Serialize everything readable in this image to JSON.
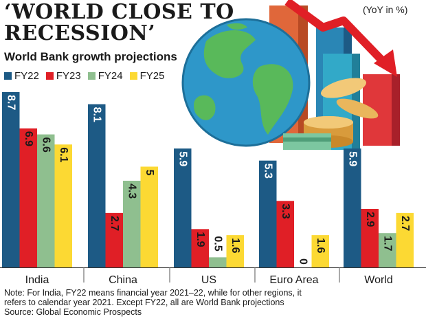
{
  "header": {
    "title_line1": "‘WORLD CLOSE TO",
    "title_line2": "RECESSION’",
    "subtitle": "World Bank growth projections",
    "unit": "(YoY in %)"
  },
  "note": {
    "line1": "Note: For India, FY22 means financial year 2021–22, while for other regions, it",
    "line2": "refers to calendar year 2021. Except FY22, all are World Bank projections",
    "line3": "Source: Global Economic Prospects"
  },
  "chart_data": {
    "type": "bar",
    "categories": [
      "India",
      "China",
      "US",
      "Euro Area",
      "World"
    ],
    "series": [
      {
        "name": "FY22",
        "color": "#1d5a85",
        "values": [
          8.7,
          8.1,
          5.9,
          5.3,
          5.9
        ]
      },
      {
        "name": "FY23",
        "color": "#e01f26",
        "values": [
          6.9,
          2.7,
          1.9,
          3.3,
          2.9
        ]
      },
      {
        "name": "FY24",
        "color": "#8fbf8f",
        "values": [
          6.6,
          4.3,
          0.5,
          0,
          1.7
        ]
      },
      {
        "name": "FY25",
        "color": "#fcd933",
        "values": [
          6.1,
          5,
          1.6,
          1.6,
          2.7
        ]
      }
    ],
    "value_labels": [
      [
        "8.7",
        "6.9",
        "6.6",
        "6.1"
      ],
      [
        "8.1",
        "2.7",
        "4.3",
        "5"
      ],
      [
        "5.9",
        "1.9",
        "0.5",
        "1.6"
      ],
      [
        "5.3",
        "3.3",
        "0",
        "1.6"
      ],
      [
        "5.9",
        "2.9",
        "1.7",
        "2.7"
      ]
    ],
    "ylim": [
      0,
      8.7
    ],
    "legend_position": "top-left",
    "grid": false
  }
}
